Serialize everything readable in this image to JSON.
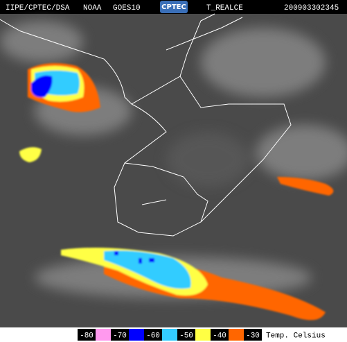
{
  "header": {
    "source": "IIPE/CPTEC/DSA",
    "agency": "NOAA",
    "satellite": "GOES10",
    "logo": "CPTEC",
    "product": "T_REALCE",
    "timestamp": "200903302345"
  },
  "legend": {
    "labels": [
      -80,
      -70,
      -60,
      -50,
      -40,
      -30
    ],
    "colors": [
      "#ff99ee",
      "#0000ff",
      "#33ccff",
      "#ffff44",
      "#ff6600"
    ],
    "unit": "Temp. Celsius"
  }
}
